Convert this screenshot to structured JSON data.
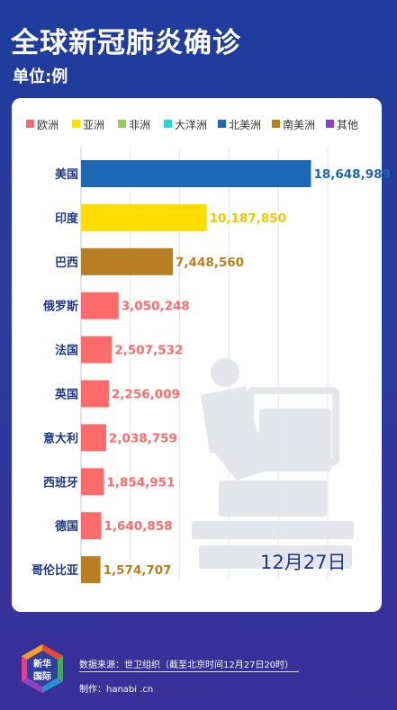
{
  "title": "全球新冠肺炎确诊",
  "unit": "单位:例",
  "legend": [
    {
      "label": "欧洲",
      "color": "#ff6b6b"
    },
    {
      "label": "亚洲",
      "color": "#ffdd00"
    },
    {
      "label": "非洲",
      "color": "#8fd14f"
    },
    {
      "label": "大洋洲",
      "color": "#2ad4d4"
    },
    {
      "label": "北美洲",
      "color": "#1c68b4"
    },
    {
      "label": "南美洲",
      "color": "#b87f22"
    },
    {
      "label": "其他",
      "color": "#8e44c4"
    }
  ],
  "chart_data": {
    "type": "bar",
    "orientation": "horizontal",
    "categories": [
      "美国",
      "印度",
      "巴西",
      "俄罗斯",
      "法国",
      "英国",
      "意大利",
      "西班牙",
      "德国",
      "哥伦比亚"
    ],
    "values": [
      18648989,
      10187850,
      7448560,
      3050248,
      2507532,
      2256009,
      2038759,
      1854951,
      1640858,
      1574707
    ],
    "value_labels": [
      "18,648,989",
      "10,187,850",
      "7,448,560",
      "3,050,248",
      "2,507,532",
      "2,256,009",
      "2,038,759",
      "1,854,951",
      "1,640,858",
      "1,574,707"
    ],
    "regions": [
      "北美洲",
      "亚洲",
      "南美洲",
      "欧洲",
      "欧洲",
      "欧洲",
      "欧洲",
      "欧洲",
      "欧洲",
      "南美洲"
    ],
    "region_colors": {
      "北美洲": "#1c68b4",
      "亚洲": "#ffdd00",
      "南美洲": "#b87f22",
      "欧洲": "#ff6b6b"
    },
    "value_label_colors": {
      "北美洲": "#1c68b4",
      "亚洲": "#f0c800",
      "南美洲": "#b87f22",
      "欧洲": "#ff6b6b"
    },
    "xlim": [
      0,
      20000000
    ],
    "grid": true,
    "legend_position": "top"
  },
  "date": "12月27日",
  "footer": {
    "logo_text": "新华国际",
    "source": "数据来源：世卫组织（截至北京时间12月27日20时）",
    "maker": "制作：hanabi .cn"
  }
}
